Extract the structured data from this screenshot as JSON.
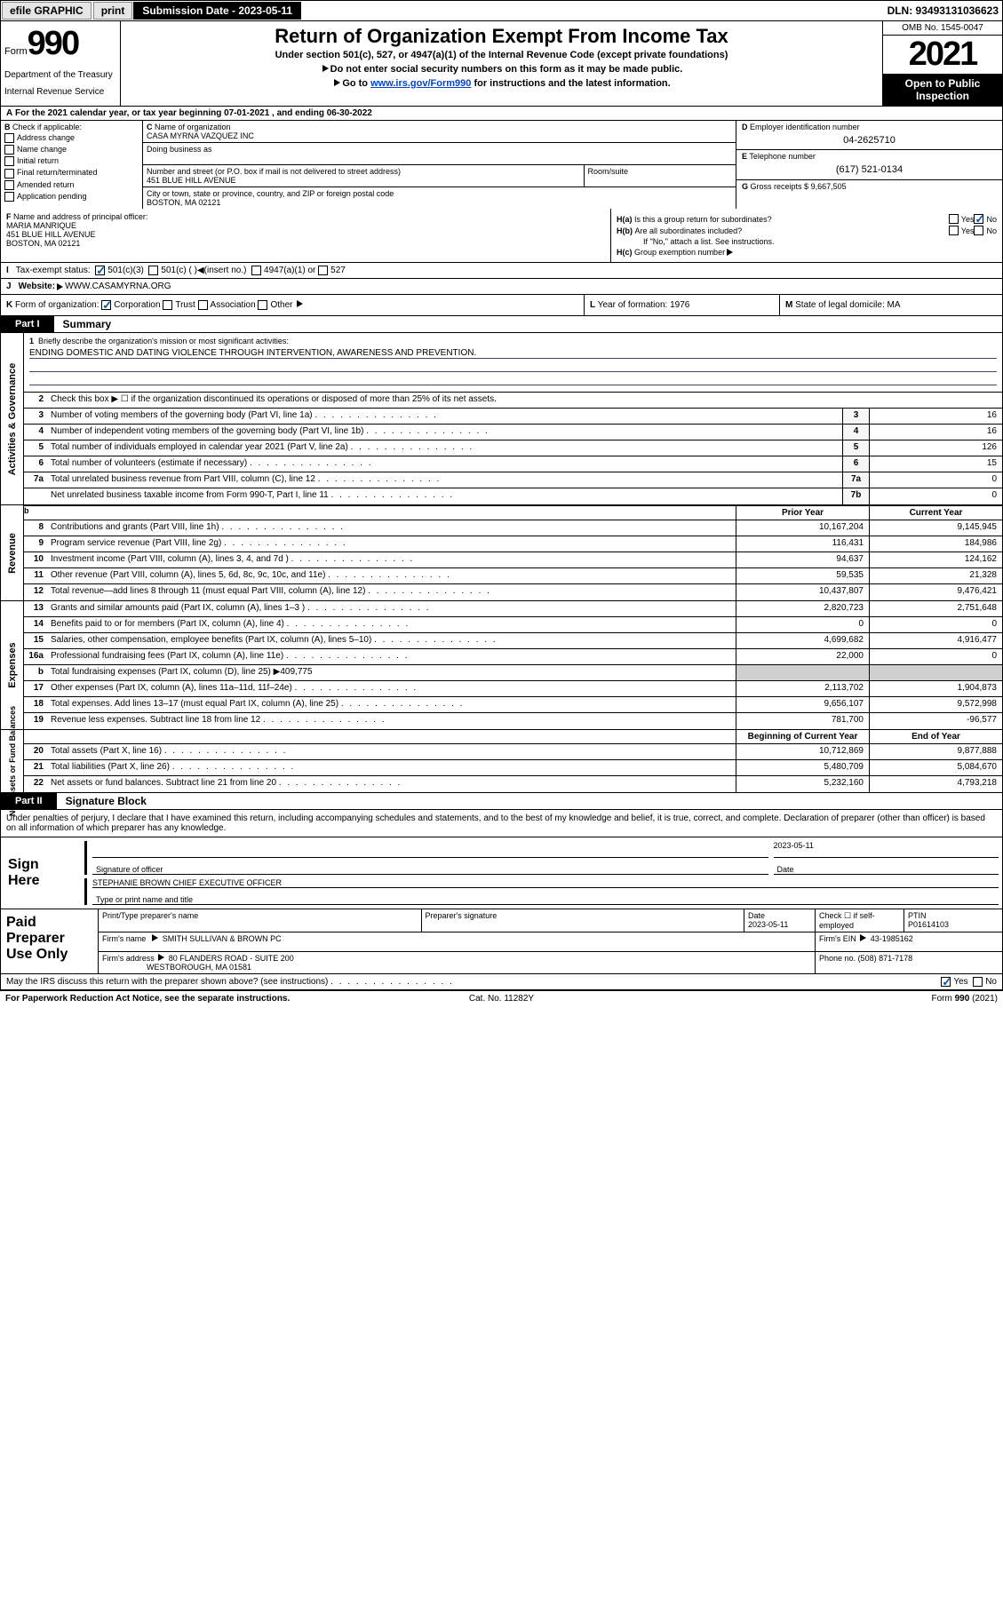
{
  "topbar": {
    "efile": "efile GRAPHIC",
    "print": "print",
    "submission_label": "Submission Date - 2023-05-11",
    "dln": "DLN: 93493131036623"
  },
  "header": {
    "form_word": "Form",
    "form_num": "990",
    "dept": "Department of the Treasury",
    "irs": "Internal Revenue Service",
    "title": "Return of Organization Exempt From Income Tax",
    "sub1": "Under section 501(c), 527, or 4947(a)(1) of the Internal Revenue Code (except private foundations)",
    "sub2": "Do not enter social security numbers on this form as it may be made public.",
    "sub3_pre": "Go to ",
    "sub3_link": "www.irs.gov/Form990",
    "sub3_post": " for instructions and the latest information.",
    "omb": "OMB No. 1545-0047",
    "year": "2021",
    "open": "Open to Public Inspection"
  },
  "rowA": "For the 2021 calendar year, or tax year beginning 07-01-2021   , and ending 06-30-2022",
  "B": {
    "label": "Check if applicable:",
    "items": [
      "Address change",
      "Name change",
      "Initial return",
      "Final return/terminated",
      "Amended return",
      "Application pending"
    ]
  },
  "C": {
    "name_label": "Name of organization",
    "name": "CASA MYRNA VAZQUEZ INC",
    "dba_label": "Doing business as",
    "addr_label": "Number and street (or P.O. box if mail is not delivered to street address)",
    "room_label": "Room/suite",
    "addr": "451 BLUE HILL AVENUE",
    "city_label": "City or town, state or province, country, and ZIP or foreign postal code",
    "city": "BOSTON, MA  02121"
  },
  "D": {
    "label": "Employer identification number",
    "val": "04-2625710"
  },
  "E": {
    "label": "Telephone number",
    "val": "(617) 521-0134"
  },
  "G": {
    "label": "Gross receipts $",
    "val": "9,667,505"
  },
  "F": {
    "label": "Name and address of principal officer:",
    "name": "MARIA MANRIQUE",
    "addr1": "451 BLUE HILL AVENUE",
    "addr2": "BOSTON, MA  02121"
  },
  "H": {
    "a": "Is this a group return for subordinates?",
    "b": "Are all subordinates included?",
    "note": "If \"No,\" attach a list. See instructions.",
    "c": "Group exemption number"
  },
  "I": {
    "label": "Tax-exempt status:",
    "opts": [
      "501(c)(3)",
      "501(c) (  )",
      "(insert no.)",
      "4947(a)(1) or",
      "527"
    ]
  },
  "J": {
    "label": "Website:",
    "val": "WWW.CASAMYRNA.ORG"
  },
  "K": {
    "label": "Form of organization:",
    "opts": [
      "Corporation",
      "Trust",
      "Association",
      "Other"
    ]
  },
  "L": {
    "label": "Year of formation:",
    "val": "1976"
  },
  "M": {
    "label": "State of legal domicile:",
    "val": "MA"
  },
  "partI": {
    "tag": "Part I",
    "title": "Summary"
  },
  "sidelabels": {
    "gov": "Activities & Governance",
    "rev": "Revenue",
    "exp": "Expenses",
    "net": "Net Assets or\nFund Balances"
  },
  "mission": {
    "q": "Briefly describe the organization's mission or most significant activities:",
    "a": "ENDING DOMESTIC AND DATING VIOLENCE THROUGH INTERVENTION, AWARENESS AND PREVENTION."
  },
  "line2": "Check this box ▶ ☐ if the organization discontinued its operations or disposed of more than 25% of its net assets.",
  "gov_rows": [
    {
      "n": "3",
      "d": "Number of voting members of the governing body (Part VI, line 1a)",
      "nc": "3",
      "v": "16"
    },
    {
      "n": "4",
      "d": "Number of independent voting members of the governing body (Part VI, line 1b)",
      "nc": "4",
      "v": "16"
    },
    {
      "n": "5",
      "d": "Total number of individuals employed in calendar year 2021 (Part V, line 2a)",
      "nc": "5",
      "v": "126"
    },
    {
      "n": "6",
      "d": "Total number of volunteers (estimate if necessary)",
      "nc": "6",
      "v": "15"
    },
    {
      "n": "7a",
      "d": "Total unrelated business revenue from Part VIII, column (C), line 12",
      "nc": "7a",
      "v": "0"
    },
    {
      "n": "",
      "d": "Net unrelated business taxable income from Form 990-T, Part I, line 11",
      "nc": "7b",
      "v": "0"
    }
  ],
  "col_hdrs": {
    "prior": "Prior Year",
    "curr": "Current Year",
    "beg": "Beginning of Current Year",
    "end": "End of Year"
  },
  "rev_rows": [
    {
      "n": "8",
      "d": "Contributions and grants (Part VIII, line 1h)",
      "p": "10,167,204",
      "c": "9,145,945"
    },
    {
      "n": "9",
      "d": "Program service revenue (Part VIII, line 2g)",
      "p": "116,431",
      "c": "184,986"
    },
    {
      "n": "10",
      "d": "Investment income (Part VIII, column (A), lines 3, 4, and 7d )",
      "p": "94,637",
      "c": "124,162"
    },
    {
      "n": "11",
      "d": "Other revenue (Part VIII, column (A), lines 5, 6d, 8c, 9c, 10c, and 11e)",
      "p": "59,535",
      "c": "21,328"
    },
    {
      "n": "12",
      "d": "Total revenue—add lines 8 through 11 (must equal Part VIII, column (A), line 12)",
      "p": "10,437,807",
      "c": "9,476,421"
    }
  ],
  "exp_rows": [
    {
      "n": "13",
      "d": "Grants and similar amounts paid (Part IX, column (A), lines 1–3 )",
      "p": "2,820,723",
      "c": "2,751,648"
    },
    {
      "n": "14",
      "d": "Benefits paid to or for members (Part IX, column (A), line 4)",
      "p": "0",
      "c": "0"
    },
    {
      "n": "15",
      "d": "Salaries, other compensation, employee benefits (Part IX, column (A), lines 5–10)",
      "p": "4,699,682",
      "c": "4,916,477"
    },
    {
      "n": "16a",
      "d": "Professional fundraising fees (Part IX, column (A), line 11e)",
      "p": "22,000",
      "c": "0"
    },
    {
      "n": "b",
      "d": "Total fundraising expenses (Part IX, column (D), line 25) ▶409,775",
      "p": "grey",
      "c": "grey"
    },
    {
      "n": "17",
      "d": "Other expenses (Part IX, column (A), lines 11a–11d, 11f–24e)",
      "p": "2,113,702",
      "c": "1,904,873"
    },
    {
      "n": "18",
      "d": "Total expenses. Add lines 13–17 (must equal Part IX, column (A), line 25)",
      "p": "9,656,107",
      "c": "9,572,998"
    },
    {
      "n": "19",
      "d": "Revenue less expenses. Subtract line 18 from line 12",
      "p": "781,700",
      "c": "-96,577"
    }
  ],
  "net_rows": [
    {
      "n": "20",
      "d": "Total assets (Part X, line 16)",
      "p": "10,712,869",
      "c": "9,877,888"
    },
    {
      "n": "21",
      "d": "Total liabilities (Part X, line 26)",
      "p": "5,480,709",
      "c": "5,084,670"
    },
    {
      "n": "22",
      "d": "Net assets or fund balances. Subtract line 21 from line 20",
      "p": "5,232,160",
      "c": "4,793,218"
    }
  ],
  "partII": {
    "tag": "Part II",
    "title": "Signature Block"
  },
  "perjury": "Under penalties of perjury, I declare that I have examined this return, including accompanying schedules and statements, and to the best of my knowledge and belief, it is true, correct, and complete. Declaration of preparer (other than officer) is based on all information of which preparer has any knowledge.",
  "sign": {
    "here": "Sign Here",
    "sig_label": "Signature of officer",
    "date_label": "Date",
    "date": "2023-05-11",
    "name": "STEPHANIE BROWN  CHIEF EXECUTIVE OFFICER",
    "name_label": "Type or print name and title"
  },
  "prep": {
    "lbl": "Paid Preparer Use Only",
    "h1": "Print/Type preparer's name",
    "h2": "Preparer's signature",
    "h3": "Date",
    "date": "2023-05-11",
    "h4": "Check ☐ if self-employed",
    "h5": "PTIN",
    "ptin": "P01614103",
    "firm_label": "Firm's name",
    "firm": "SMITH SULLIVAN & BROWN PC",
    "ein_label": "Firm's EIN",
    "ein": "43-1985162",
    "addr_label": "Firm's address",
    "addr1": "80 FLANDERS ROAD - SUITE 200",
    "addr2": "WESTBOROUGH, MA  01581",
    "phone_label": "Phone no.",
    "phone": "(508) 871-7178"
  },
  "may_discuss": "May the IRS discuss this return with the preparer shown above? (see instructions)",
  "footer": {
    "l": "For Paperwork Reduction Act Notice, see the separate instructions.",
    "m": "Cat. No. 11282Y",
    "r": "Form 990 (2021)"
  }
}
